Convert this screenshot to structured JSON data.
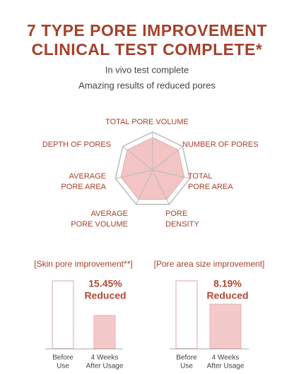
{
  "header": {
    "title_lines": [
      "7 TYPE PORE IMPROVEMENT",
      "CLINICAL TEST COMPLETE*"
    ],
    "subtitle_lines": [
      "In vivo test complete",
      "Amazing results of reduced pores"
    ]
  },
  "radar": {
    "labels": [
      [
        "TOTAL PORE VOLUME"
      ],
      [
        "NUMBER OF PORES"
      ],
      [
        "TOTAL",
        "PORE AREA"
      ],
      [
        "PORE",
        "DENSITY"
      ],
      [
        "AVERAGE",
        "PORE VOLUME"
      ],
      [
        "AVERAGE",
        "PORE AREA"
      ],
      [
        "DEPTH OF PORES"
      ]
    ]
  },
  "results": [
    {
      "heading": "[Skin pore improvement**]",
      "value": "15.45%",
      "note": "Reduced",
      "before_label": [
        "Before",
        "Use"
      ],
      "after_label": [
        "4 Weeks",
        "After Usage"
      ]
    },
    {
      "heading": "[Pore area size improvement]",
      "value": "8.19%",
      "note": "Reduced",
      "before_label": [
        "Before",
        "Use"
      ],
      "after_label": [
        "4 Weeks",
        "After Usage"
      ]
    }
  ]
}
